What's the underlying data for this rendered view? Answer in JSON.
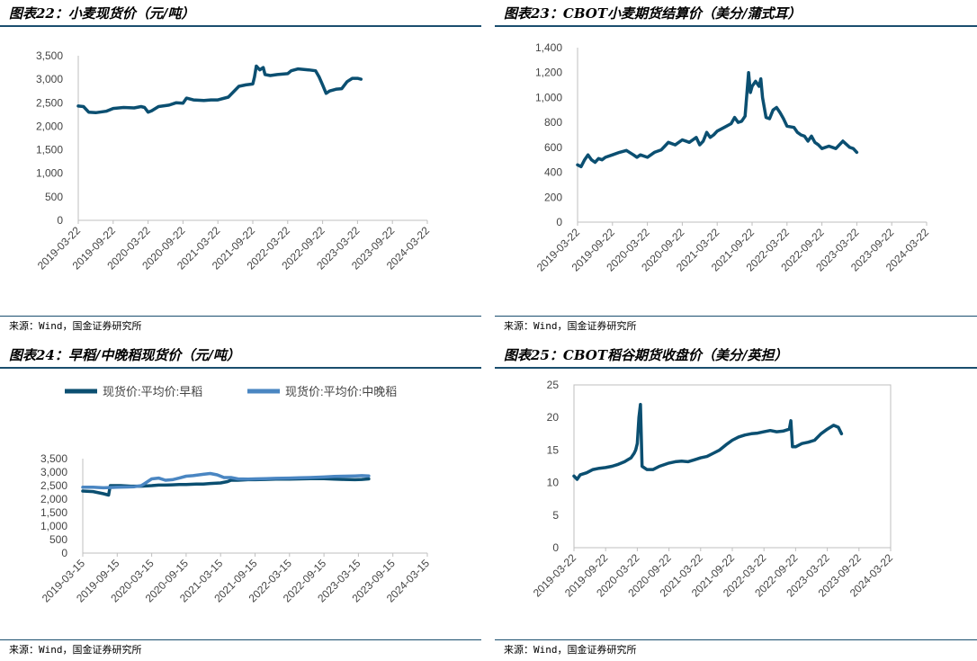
{
  "source_label": "来源：Wind，国金证券研究所",
  "colors": {
    "dark": "#0b4f71",
    "light": "#4a86c2",
    "axis": "#bfbfbf",
    "rule": "#1a4e6e"
  },
  "chart_data": [
    {
      "id": "c22",
      "title": "图表22：小麦现货价（元/吨）",
      "type": "line",
      "ylim": [
        0,
        3500
      ],
      "yticks": [
        "0",
        "500",
        "1,000",
        "1,500",
        "2,000",
        "2,500",
        "3,000",
        "3,500"
      ],
      "xticks": [
        "2019-03-22",
        "2019-09-22",
        "2020-03-22",
        "2020-09-22",
        "2021-03-22",
        "2021-09-22",
        "2022-03-22",
        "2022-09-22",
        "2023-03-22",
        "2023-09-22",
        "2024-03-22"
      ],
      "series": [
        {
          "color": "#0b4f71",
          "points": [
            [
              0,
              2430
            ],
            [
              0.15,
              2420
            ],
            [
              0.3,
              2300
            ],
            [
              0.5,
              2290
            ],
            [
              0.8,
              2320
            ],
            [
              1.0,
              2380
            ],
            [
              1.3,
              2400
            ],
            [
              1.6,
              2390
            ],
            [
              1.8,
              2420
            ],
            [
              1.9,
              2400
            ],
            [
              2.0,
              2300
            ],
            [
              2.1,
              2330
            ],
            [
              2.3,
              2420
            ],
            [
              2.6,
              2450
            ],
            [
              2.8,
              2500
            ],
            [
              3.0,
              2490
            ],
            [
              3.1,
              2600
            ],
            [
              3.3,
              2560
            ],
            [
              3.6,
              2550
            ],
            [
              3.8,
              2560
            ],
            [
              4.0,
              2560
            ],
            [
              4.3,
              2620
            ],
            [
              4.6,
              2850
            ],
            [
              4.8,
              2880
            ],
            [
              5.0,
              2900
            ],
            [
              5.05,
              3050
            ],
            [
              5.1,
              3280
            ],
            [
              5.2,
              3200
            ],
            [
              5.3,
              3250
            ],
            [
              5.35,
              3100
            ],
            [
              5.5,
              3080
            ],
            [
              5.7,
              3100
            ],
            [
              6.0,
              3120
            ],
            [
              6.1,
              3180
            ],
            [
              6.3,
              3220
            ],
            [
              6.6,
              3200
            ],
            [
              6.8,
              3180
            ],
            [
              6.9,
              3050
            ],
            [
              7.0,
              2880
            ],
            [
              7.1,
              2700
            ],
            [
              7.2,
              2750
            ],
            [
              7.4,
              2790
            ],
            [
              7.55,
              2800
            ],
            [
              7.7,
              2950
            ],
            [
              7.85,
              3020
            ],
            [
              8.0,
              3020
            ],
            [
              8.1,
              3000
            ]
          ]
        }
      ]
    },
    {
      "id": "c23",
      "title": "图表23：CBOT小麦期货结算价（美分/蒲式耳）",
      "type": "line",
      "ylim": [
        0,
        1400
      ],
      "yticks": [
        "0",
        "200",
        "400",
        "600",
        "800",
        "1,000",
        "1,200",
        "1,400"
      ],
      "xticks": [
        "2019-03-22",
        "2019-09-22",
        "2020-03-22",
        "2020-09-22",
        "2021-03-22",
        "2021-09-22",
        "2022-03-22",
        "2022-09-22",
        "2023-03-22",
        "2023-09-22",
        "2024-03-22"
      ],
      "series": [
        {
          "color": "#0b4f71",
          "points": [
            [
              0,
              460
            ],
            [
              0.1,
              445
            ],
            [
              0.2,
              500
            ],
            [
              0.3,
              540
            ],
            [
              0.4,
              500
            ],
            [
              0.5,
              480
            ],
            [
              0.6,
              510
            ],
            [
              0.7,
              500
            ],
            [
              0.8,
              520
            ],
            [
              1.0,
              540
            ],
            [
              1.2,
              560
            ],
            [
              1.4,
              575
            ],
            [
              1.6,
              540
            ],
            [
              1.7,
              520
            ],
            [
              1.8,
              540
            ],
            [
              2.0,
              520
            ],
            [
              2.1,
              540
            ],
            [
              2.2,
              560
            ],
            [
              2.4,
              580
            ],
            [
              2.5,
              610
            ],
            [
              2.6,
              640
            ],
            [
              2.8,
              620
            ],
            [
              3.0,
              660
            ],
            [
              3.2,
              640
            ],
            [
              3.4,
              680
            ],
            [
              3.5,
              620
            ],
            [
              3.6,
              650
            ],
            [
              3.7,
              720
            ],
            [
              3.8,
              680
            ],
            [
              3.9,
              700
            ],
            [
              4.0,
              730
            ],
            [
              4.2,
              760
            ],
            [
              4.4,
              790
            ],
            [
              4.5,
              840
            ],
            [
              4.6,
              800
            ],
            [
              4.7,
              810
            ],
            [
              4.8,
              850
            ],
            [
              4.9,
              1200
            ],
            [
              4.95,
              1040
            ],
            [
              5.0,
              1090
            ],
            [
              5.1,
              1130
            ],
            [
              5.2,
              1090
            ],
            [
              5.25,
              1150
            ],
            [
              5.3,
              1000
            ],
            [
              5.4,
              840
            ],
            [
              5.5,
              830
            ],
            [
              5.6,
              900
            ],
            [
              5.7,
              920
            ],
            [
              5.8,
              880
            ],
            [
              5.9,
              830
            ],
            [
              6.0,
              770
            ],
            [
              6.2,
              760
            ],
            [
              6.3,
              720
            ],
            [
              6.4,
              700
            ],
            [
              6.5,
              690
            ],
            [
              6.6,
              650
            ],
            [
              6.7,
              690
            ],
            [
              6.8,
              640
            ],
            [
              6.9,
              620
            ],
            [
              7.0,
              590
            ],
            [
              7.2,
              610
            ],
            [
              7.4,
              590
            ],
            [
              7.5,
              620
            ],
            [
              7.6,
              650
            ],
            [
              7.8,
              600
            ],
            [
              7.9,
              590
            ],
            [
              8.0,
              560
            ]
          ]
        }
      ]
    },
    {
      "id": "c24",
      "title": "图表24：早稻/中晚稻现货价（元/吨）",
      "type": "line",
      "ylim": [
        0,
        3500
      ],
      "yticks": [
        "0",
        "500",
        "1,000",
        "1,500",
        "2,000",
        "2,500",
        "3,000",
        "3,500"
      ],
      "xticks": [
        "2019-03-15",
        "2019-09-15",
        "2020-03-15",
        "2020-09-15",
        "2021-03-15",
        "2021-09-15",
        "2022-03-15",
        "2022-09-15",
        "2023-03-15",
        "2023-09-15",
        "2024-03-15"
      ],
      "series": [
        {
          "name": "现货价:平均价:早稻",
          "color": "#0b4f71",
          "points": [
            [
              0,
              2300
            ],
            [
              0.3,
              2280
            ],
            [
              0.6,
              2200
            ],
            [
              0.75,
              2150
            ],
            [
              0.8,
              2500
            ],
            [
              1.1,
              2500
            ],
            [
              1.4,
              2480
            ],
            [
              1.7,
              2480
            ],
            [
              2.0,
              2500
            ],
            [
              2.2,
              2520
            ],
            [
              2.4,
              2520
            ],
            [
              2.6,
              2530
            ],
            [
              2.8,
              2540
            ],
            [
              3.0,
              2540
            ],
            [
              3.3,
              2560
            ],
            [
              3.5,
              2560
            ],
            [
              3.7,
              2580
            ],
            [
              4.0,
              2600
            ],
            [
              4.2,
              2650
            ],
            [
              4.3,
              2700
            ],
            [
              4.5,
              2700
            ],
            [
              4.8,
              2720
            ],
            [
              5.0,
              2720
            ],
            [
              5.3,
              2730
            ],
            [
              5.6,
              2740
            ],
            [
              6.0,
              2740
            ],
            [
              6.3,
              2750
            ],
            [
              6.6,
              2760
            ],
            [
              7.0,
              2760
            ],
            [
              7.3,
              2740
            ],
            [
              7.6,
              2730
            ],
            [
              7.9,
              2720
            ],
            [
              8.1,
              2730
            ],
            [
              8.3,
              2750
            ]
          ]
        },
        {
          "name": "现货价:平均价:中晚稻",
          "color": "#4a86c2",
          "points": [
            [
              0,
              2440
            ],
            [
              0.3,
              2440
            ],
            [
              0.6,
              2420
            ],
            [
              1.0,
              2440
            ],
            [
              1.3,
              2450
            ],
            [
              1.5,
              2460
            ],
            [
              1.7,
              2500
            ],
            [
              1.8,
              2580
            ],
            [
              2.0,
              2750
            ],
            [
              2.2,
              2780
            ],
            [
              2.4,
              2700
            ],
            [
              2.6,
              2720
            ],
            [
              2.8,
              2780
            ],
            [
              3.0,
              2850
            ],
            [
              3.2,
              2870
            ],
            [
              3.5,
              2920
            ],
            [
              3.7,
              2950
            ],
            [
              3.9,
              2900
            ],
            [
              4.1,
              2800
            ],
            [
              4.3,
              2800
            ],
            [
              4.5,
              2750
            ],
            [
              4.8,
              2740
            ],
            [
              5.0,
              2750
            ],
            [
              5.3,
              2760
            ],
            [
              5.6,
              2770
            ],
            [
              6.0,
              2780
            ],
            [
              6.3,
              2790
            ],
            [
              6.6,
              2800
            ],
            [
              7.0,
              2820
            ],
            [
              7.3,
              2840
            ],
            [
              7.6,
              2850
            ],
            [
              7.9,
              2860
            ],
            [
              8.1,
              2870
            ],
            [
              8.3,
              2860
            ]
          ]
        }
      ]
    },
    {
      "id": "c25",
      "title": "图表25：CBOT稻谷期货收盘价（美分/英担）",
      "type": "line",
      "ylim": [
        0,
        25
      ],
      "yticks": [
        "0",
        "5",
        "10",
        "15",
        "20",
        "25"
      ],
      "xticks": [
        "2019-03-22",
        "2019-09-22",
        "2020-03-22",
        "2020-09-22",
        "2021-03-22",
        "2021-09-22",
        "2022-03-22",
        "2022-09-22",
        "2023-03-22",
        "2023-09-22",
        "2024-03-22"
      ],
      "series": [
        {
          "color": "#0b4f71",
          "points": [
            [
              0,
              11
            ],
            [
              0.1,
              10.5
            ],
            [
              0.2,
              11.2
            ],
            [
              0.4,
              11.5
            ],
            [
              0.6,
              12
            ],
            [
              0.8,
              12.2
            ],
            [
              1.0,
              12.3
            ],
            [
              1.2,
              12.5
            ],
            [
              1.4,
              12.8
            ],
            [
              1.6,
              13.2
            ],
            [
              1.7,
              13.5
            ],
            [
              1.8,
              13.8
            ],
            [
              1.9,
              14.5
            ],
            [
              1.95,
              15
            ],
            [
              2.0,
              16
            ],
            [
              2.05,
              20
            ],
            [
              2.1,
              22
            ],
            [
              2.15,
              12.5
            ],
            [
              2.3,
              12
            ],
            [
              2.5,
              12
            ],
            [
              2.7,
              12.5
            ],
            [
              3.0,
              13
            ],
            [
              3.2,
              13.2
            ],
            [
              3.4,
              13.3
            ],
            [
              3.6,
              13.2
            ],
            [
              3.8,
              13.5
            ],
            [
              4.0,
              13.8
            ],
            [
              4.2,
              14
            ],
            [
              4.4,
              14.5
            ],
            [
              4.6,
              15
            ],
            [
              4.8,
              15.8
            ],
            [
              5.0,
              16.5
            ],
            [
              5.2,
              17
            ],
            [
              5.4,
              17.3
            ],
            [
              5.6,
              17.5
            ],
            [
              5.8,
              17.6
            ],
            [
              6.0,
              17.8
            ],
            [
              6.2,
              18
            ],
            [
              6.4,
              17.8
            ],
            [
              6.6,
              17.9
            ],
            [
              6.8,
              18.2
            ],
            [
              6.85,
              19.5
            ],
            [
              6.9,
              15.5
            ],
            [
              7.0,
              15.5
            ],
            [
              7.2,
              16
            ],
            [
              7.4,
              16.2
            ],
            [
              7.6,
              16.5
            ],
            [
              7.8,
              17.5
            ],
            [
              8.0,
              18.2
            ],
            [
              8.2,
              18.8
            ],
            [
              8.35,
              18.5
            ],
            [
              8.45,
              17.5
            ]
          ]
        }
      ]
    }
  ]
}
